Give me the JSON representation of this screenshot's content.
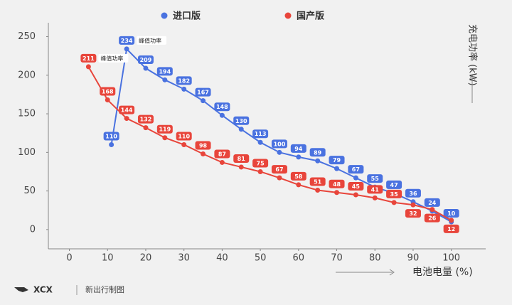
{
  "chart_data": {
    "type": "line",
    "x_label": "电池电量 (%)",
    "y_label": "充电功率 (kW)",
    "xlim": [
      -5.5,
      109
    ],
    "ylim": [
      -25,
      268
    ],
    "xticks": [
      0,
      10,
      20,
      30,
      40,
      50,
      60,
      70,
      80,
      90,
      100
    ],
    "yticks": [
      0,
      50,
      100,
      150,
      200,
      250
    ],
    "legend": "top",
    "series": [
      {
        "name": "进口版",
        "color": "#4a72e0",
        "x": [
          11,
          15,
          20,
          25,
          30,
          35,
          40,
          45,
          50,
          55,
          60,
          65,
          70,
          75,
          80,
          85,
          90,
          95,
          100
        ],
        "values": [
          110,
          234,
          209,
          194,
          182,
          167,
          148,
          130,
          113,
          100,
          94,
          89,
          79,
          67,
          55,
          47,
          36,
          24,
          10
        ]
      },
      {
        "name": "国产版",
        "color": "#e8453b",
        "x": [
          5,
          10,
          15,
          20,
          25,
          30,
          35,
          40,
          45,
          50,
          55,
          60,
          65,
          70,
          75,
          80,
          85,
          90,
          95,
          100
        ],
        "values": [
          211,
          168,
          144,
          132,
          119,
          110,
          98,
          87,
          81,
          75,
          67,
          58,
          51,
          48,
          45,
          41,
          35,
          32,
          26,
          12
        ]
      }
    ],
    "annotations": [
      "峰值功率",
      "峰值功率"
    ]
  },
  "footer": {
    "logo": "XCX",
    "text": "新出行制图"
  }
}
